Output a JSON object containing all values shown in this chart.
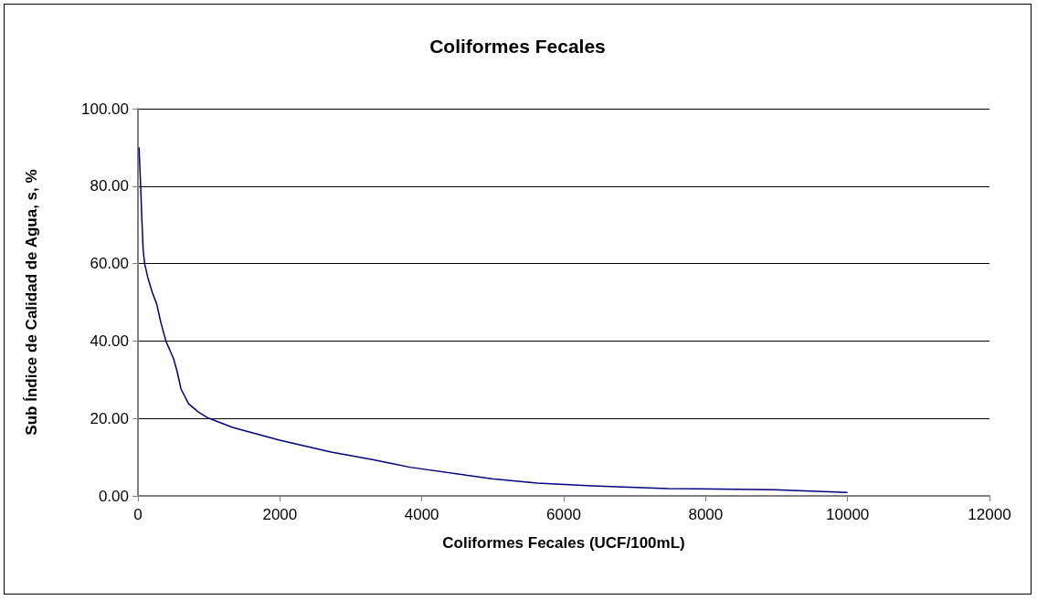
{
  "chart_data": {
    "type": "line",
    "title": "Coliformes Fecales",
    "xlabel": "Coliformes Fecales (UCF/100mL)",
    "ylabel": "Sub Índice de Calidad de Agua, s, %",
    "x": [
      15,
      38,
      55,
      73,
      94,
      137,
      201,
      265,
      321,
      393,
      500,
      551,
      607,
      713,
      855,
      991,
      1333,
      1996,
      2722,
      3321,
      3833,
      4987,
      5628,
      6397,
      7462,
      8962,
      10000
    ],
    "series": [
      {
        "color": "#000080",
        "values": [
          90,
          80,
          71.3,
          63.5,
          60,
          56.5,
          52.6,
          49.5,
          44.9,
          40,
          35.5,
          32.2,
          27.6,
          23.8,
          21.6,
          20.1,
          17.7,
          14.4,
          11.3,
          9.3,
          7.4,
          4.4,
          3.3,
          2.6,
          1.9,
          1.6,
          0.9
        ]
      }
    ],
    "xlim": [
      0,
      12000
    ],
    "xticks": [
      0,
      2000,
      4000,
      6000,
      8000,
      10000,
      12000
    ],
    "ylim": [
      0,
      100
    ],
    "yticks": [
      {
        "value": 0,
        "label": "0.00"
      },
      {
        "value": 20,
        "label": "20.00"
      },
      {
        "value": 40,
        "label": "40.00"
      },
      {
        "value": 60,
        "label": "60.00"
      },
      {
        "value": 80,
        "label": "80.00"
      },
      {
        "value": 100,
        "label": "100.00"
      }
    ],
    "grid": "y",
    "marker": "none",
    "line_style": "solid"
  }
}
